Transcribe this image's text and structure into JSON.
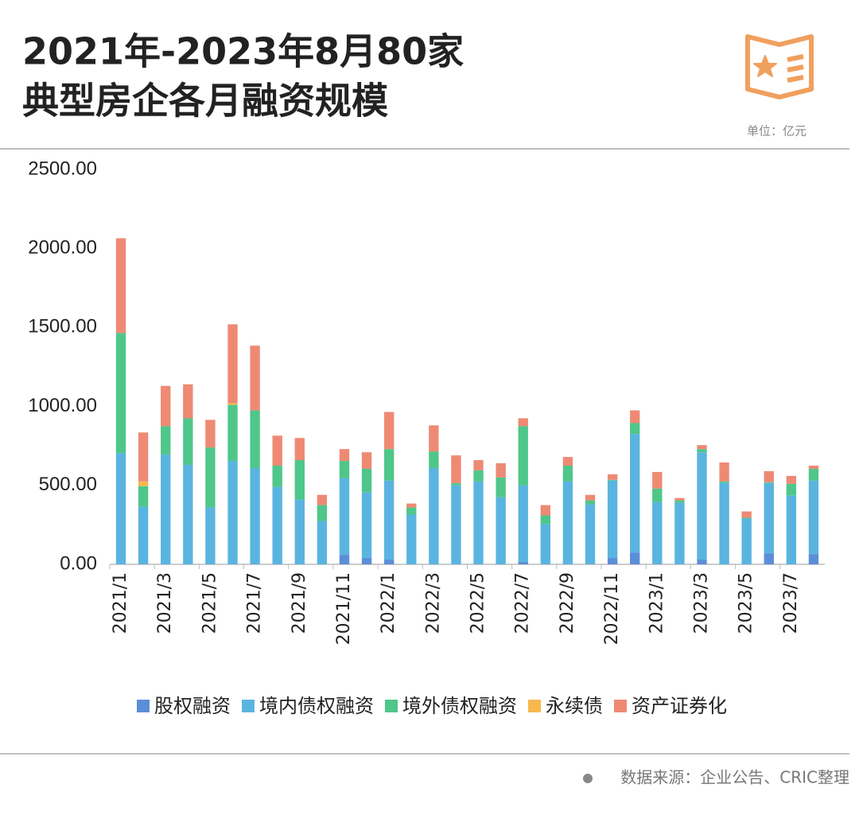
{
  "chart_data": {
    "type": "stacked_bar",
    "title": [
      "2021年-2023年8月80家",
      "典型房企各月融资规模"
    ],
    "unit_note": "单位：亿元",
    "source": "数据来源：企业公告、CRIC整理",
    "categories": [
      "2021/1",
      null,
      "2021/3",
      null,
      "2021/5",
      null,
      "2021/7",
      null,
      "2021/9",
      null,
      "2021/11",
      null,
      "2022/1",
      null,
      "2022/3",
      null,
      "2022/5",
      null,
      "2022/7",
      null,
      "2022/9",
      null,
      "2022/11",
      null,
      "2023/1",
      null,
      "2023/3",
      null,
      "2023/5",
      null,
      "2023/7",
      null
    ],
    "series": [
      {
        "name": "股权融资",
        "color": "#5b8ed8",
        "values": [
          0,
          0,
          0,
          0,
          0,
          0,
          0,
          0,
          0,
          0,
          60,
          40,
          30,
          0,
          0,
          0,
          0,
          0,
          15,
          0,
          0,
          0,
          40,
          75,
          0,
          0,
          30,
          0,
          0,
          70,
          0,
          65
        ]
      },
      {
        "name": "境内债权融资",
        "color": "#5ab4e0",
        "values": [
          705,
          365,
          695,
          630,
          360,
          655,
          610,
          490,
          410,
          275,
          485,
          415,
          500,
          315,
          610,
          500,
          525,
          425,
          485,
          255,
          525,
          380,
          490,
          750,
          395,
          390,
          680,
          515,
          290,
          445,
          435,
          465
        ]
      },
      {
        "name": "境外债权融资",
        "color": "#4fc68a",
        "values": [
          760,
          130,
          180,
          295,
          380,
          355,
          365,
          135,
          250,
          100,
          110,
          150,
          200,
          45,
          105,
          15,
          70,
          125,
          375,
          55,
          100,
          25,
          5,
          70,
          85,
          15,
          20,
          10,
          5,
          5,
          75,
          75
        ]
      },
      {
        "name": "永续债",
        "color": "#f8b84e",
        "values": [
          0,
          30,
          0,
          0,
          0,
          10,
          0,
          0,
          0,
          0,
          0,
          0,
          0,
          0,
          0,
          0,
          0,
          0,
          0,
          0,
          0,
          0,
          0,
          0,
          0,
          0,
          0,
          0,
          0,
          0,
          0,
          0
        ]
      },
      {
        "name": "资产证券化",
        "color": "#ee8a74",
        "values": [
          600,
          310,
          255,
          215,
          175,
          500,
          410,
          190,
          140,
          65,
          75,
          105,
          235,
          25,
          165,
          175,
          65,
          90,
          50,
          65,
          55,
          35,
          35,
          80,
          105,
          15,
          25,
          120,
          40,
          70,
          50,
          20
        ]
      }
    ],
    "ylim": [
      0,
      2500
    ],
    "yticks": [
      {
        "value": 0,
        "label": "0.00"
      },
      {
        "value": 500,
        "label": "500.00"
      },
      {
        "value": 1000,
        "label": "1000.00"
      },
      {
        "value": 1500,
        "label": "1500.00"
      },
      {
        "value": 2000,
        "label": "2000.00"
      },
      {
        "value": 2500,
        "label": "2500.00"
      }
    ],
    "grid": false,
    "legend": "bottom"
  }
}
